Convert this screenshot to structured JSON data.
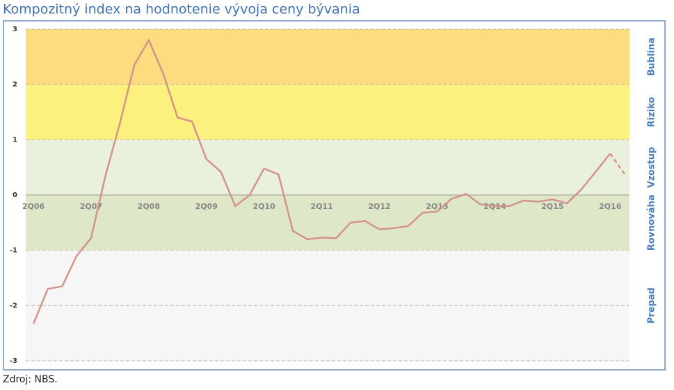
{
  "chart_data": {
    "type": "line",
    "title": "Kompozitný index na hodnotenie vývoja ceny bývania",
    "source": "Zdroj: NBS.",
    "categories": [
      "2Q06",
      null,
      null,
      null,
      "2Q07",
      null,
      null,
      null,
      "2Q08",
      null,
      null,
      null,
      "2Q09",
      null,
      null,
      null,
      "2Q10",
      null,
      null,
      null,
      "2Q11",
      null,
      null,
      null,
      "2Q12",
      null,
      null,
      null,
      "2Q13",
      null,
      null,
      null,
      "2Q14",
      null,
      null,
      null,
      "2Q15",
      null,
      null,
      null,
      "2Q16",
      null
    ],
    "series": [
      {
        "color": "#d4938a",
        "values": [
          -2.33,
          -1.7,
          -1.65,
          -1.1,
          -0.78,
          0.35,
          1.3,
          2.35,
          2.8,
          2.2,
          1.4,
          1.33,
          0.65,
          0.42,
          -0.2,
          0.0,
          0.48,
          0.37,
          -0.65,
          -0.8,
          -0.77,
          -0.78,
          -0.5,
          -0.47,
          -0.62,
          -0.6,
          -0.56,
          -0.32,
          -0.3,
          -0.07,
          0.02,
          -0.17,
          -0.2,
          -0.2,
          -0.1,
          -0.12,
          -0.08,
          -0.15,
          0.1,
          0.42,
          0.75,
          0.38
        ]
      }
    ],
    "dashed_last_segment": true,
    "ylim": [
      -3,
      3
    ],
    "yticks": [
      -3,
      -2,
      -1,
      0,
      1,
      2,
      3
    ],
    "bands": [
      {
        "from": 2,
        "to": 3,
        "label": "Bublina",
        "color": "#fddc80"
      },
      {
        "from": 1,
        "to": 2,
        "label": "Riziko",
        "color": "#fcf07e"
      },
      {
        "from": 0,
        "to": 1,
        "label": "Vzostup",
        "color": "#e9f0dc"
      },
      {
        "from": -1,
        "to": 0,
        "label": "Rovnováha",
        "color": "#dfe7c9"
      },
      {
        "from": -3,
        "to": -1,
        "label": "Prepad",
        "color": "#f6f6f6"
      }
    ]
  }
}
